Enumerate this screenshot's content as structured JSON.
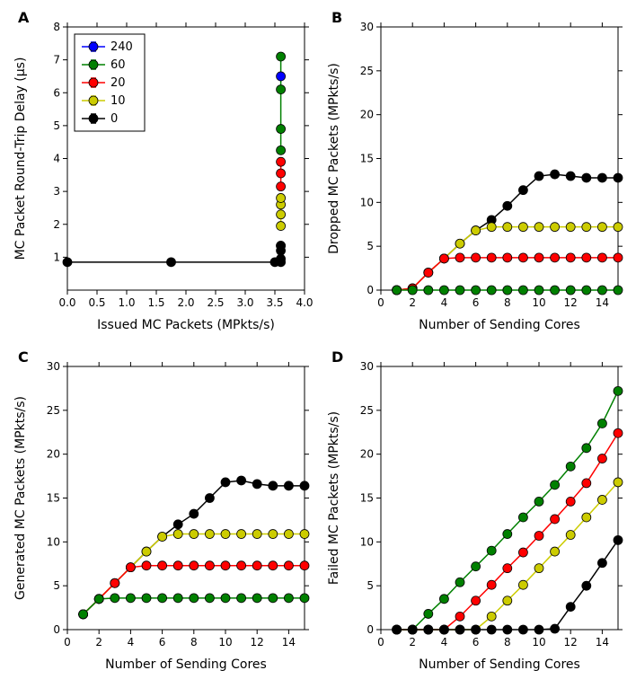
{
  "global": {
    "background_color": "#ffffff",
    "axis_color": "#000000",
    "tick_fontsize": 12,
    "label_fontsize": 14,
    "panel_label_fontsize": 16,
    "marker_size": 5,
    "line_width": 1.5,
    "tick_len": 5,
    "font_family": "DejaVu Sans"
  },
  "legend": {
    "items": [
      {
        "label": "240",
        "color": "#0000ff"
      },
      {
        "label": "60",
        "color": "#008000"
      },
      {
        "label": "20",
        "color": "#ff0000"
      },
      {
        "label": "10",
        "color": "#cccc00"
      },
      {
        "label": "0",
        "color": "#000000"
      }
    ],
    "border_color": "#000000",
    "background": "#ffffff"
  },
  "panels": {
    "A": {
      "type": "scatter-line",
      "panel_label": "A",
      "xlabel": "Issued MC Packets (MPkts/s)",
      "ylabel": "MC Packet Round-Trip Delay (μs)",
      "xlim": [
        0.0,
        4.0
      ],
      "ylim": [
        0,
        8
      ],
      "xticks": [
        0.0,
        0.5,
        1.0,
        1.5,
        2.0,
        2.5,
        3.0,
        3.5,
        4.0
      ],
      "yticks": [
        1,
        2,
        3,
        4,
        5,
        6,
        7,
        8
      ],
      "series": [
        {
          "color": "#000000",
          "x": [
            0.0,
            1.75,
            3.5,
            3.6,
            3.6,
            3.6,
            3.6,
            3.6
          ],
          "y": [
            0.85,
            0.85,
            0.85,
            0.85,
            0.95,
            1.2,
            1.35,
            1.35
          ]
        },
        {
          "color": "#cccc00",
          "x": [
            3.6,
            3.6,
            3.6,
            3.6
          ],
          "y": [
            1.95,
            2.3,
            2.6,
            2.8
          ]
        },
        {
          "color": "#ff0000",
          "x": [
            3.6,
            3.6,
            3.6
          ],
          "y": [
            3.15,
            3.55,
            3.9
          ]
        },
        {
          "color": "#008000",
          "x": [
            3.6,
            3.6,
            3.6,
            3.6
          ],
          "y": [
            4.25,
            4.9,
            6.1,
            7.1
          ]
        },
        {
          "color": "#0000ff",
          "x": [
            3.6
          ],
          "y": [
            6.5
          ]
        }
      ]
    },
    "B": {
      "type": "scatter-line",
      "panel_label": "B",
      "xlabel": "Number of Sending Cores",
      "ylabel": "Dropped MC Packets (MPkts/s)",
      "xlim": [
        0,
        15
      ],
      "ylim": [
        0,
        30
      ],
      "xticks": [
        0,
        2,
        4,
        6,
        8,
        10,
        12,
        14
      ],
      "yticks": [
        0,
        5,
        10,
        15,
        20,
        25,
        30
      ],
      "series": [
        {
          "color": "#000000",
          "x": [
            1,
            2,
            3,
            4,
            5,
            6,
            7,
            8,
            9,
            10,
            11,
            12,
            13,
            14,
            15
          ],
          "y": [
            0,
            0.2,
            2,
            3.6,
            5.3,
            6.8,
            8,
            9.6,
            11.4,
            13,
            13.2,
            13,
            12.8,
            12.8,
            12.8
          ]
        },
        {
          "color": "#cccc00",
          "x": [
            1,
            2,
            3,
            4,
            5,
            6,
            7,
            8,
            9,
            10,
            11,
            12,
            13,
            14,
            15
          ],
          "y": [
            0,
            0.2,
            2,
            3.6,
            5.3,
            6.8,
            7.2,
            7.2,
            7.2,
            7.2,
            7.2,
            7.2,
            7.2,
            7.2,
            7.2
          ]
        },
        {
          "color": "#ff0000",
          "x": [
            1,
            2,
            3,
            4,
            5,
            6,
            7,
            8,
            9,
            10,
            11,
            12,
            13,
            14,
            15
          ],
          "y": [
            0,
            0.2,
            2,
            3.6,
            3.7,
            3.7,
            3.7,
            3.7,
            3.7,
            3.7,
            3.7,
            3.7,
            3.7,
            3.7,
            3.7
          ]
        },
        {
          "color": "#008000",
          "x": [
            1,
            2,
            3,
            4,
            5,
            6,
            7,
            8,
            9,
            10,
            11,
            12,
            13,
            14,
            15
          ],
          "y": [
            0,
            0,
            0,
            0,
            0,
            0,
            0,
            0,
            0,
            0,
            0,
            0,
            0,
            0,
            0
          ]
        }
      ]
    },
    "C": {
      "type": "scatter-line",
      "panel_label": "C",
      "xlabel": "Number of Sending Cores",
      "ylabel": "Generated MC Packets (MPkts/s)",
      "xlim": [
        0,
        15
      ],
      "ylim": [
        0,
        30
      ],
      "xticks": [
        0,
        2,
        4,
        6,
        8,
        10,
        12,
        14
      ],
      "yticks": [
        0,
        5,
        10,
        15,
        20,
        25,
        30
      ],
      "series": [
        {
          "color": "#000000",
          "x": [
            1,
            2,
            3,
            4,
            5,
            6,
            7,
            8,
            9,
            10,
            11,
            12,
            13,
            14,
            15
          ],
          "y": [
            1.75,
            3.5,
            5.3,
            7.1,
            8.9,
            10.6,
            12,
            13.2,
            15,
            16.8,
            17,
            16.6,
            16.4,
            16.4,
            16.4
          ]
        },
        {
          "color": "#cccc00",
          "x": [
            1,
            2,
            3,
            4,
            5,
            6,
            7,
            8,
            9,
            10,
            11,
            12,
            13,
            14,
            15
          ],
          "y": [
            1.75,
            3.5,
            5.3,
            7.1,
            8.9,
            10.6,
            10.9,
            10.9,
            10.9,
            10.9,
            10.9,
            10.9,
            10.9,
            10.9,
            10.9
          ]
        },
        {
          "color": "#ff0000",
          "x": [
            1,
            2,
            3,
            4,
            5,
            6,
            7,
            8,
            9,
            10,
            11,
            12,
            13,
            14,
            15
          ],
          "y": [
            1.75,
            3.5,
            5.3,
            7.1,
            7.3,
            7.3,
            7.3,
            7.3,
            7.3,
            7.3,
            7.3,
            7.3,
            7.3,
            7.3,
            7.3
          ]
        },
        {
          "color": "#008000",
          "x": [
            1,
            2,
            3,
            4,
            5,
            6,
            7,
            8,
            9,
            10,
            11,
            12,
            13,
            14,
            15
          ],
          "y": [
            1.75,
            3.5,
            3.6,
            3.6,
            3.6,
            3.6,
            3.6,
            3.6,
            3.6,
            3.6,
            3.6,
            3.6,
            3.6,
            3.6,
            3.6
          ]
        }
      ]
    },
    "D": {
      "type": "scatter-line",
      "panel_label": "D",
      "xlabel": "Number of Sending Cores",
      "ylabel": "Failed MC Packets (MPkts/s)",
      "xlim": [
        0,
        15
      ],
      "ylim": [
        0,
        30
      ],
      "xticks": [
        0,
        2,
        4,
        6,
        8,
        10,
        12,
        14
      ],
      "yticks": [
        0,
        5,
        10,
        15,
        20,
        25,
        30
      ],
      "series": [
        {
          "color": "#008000",
          "x": [
            1,
            2,
            3,
            4,
            5,
            6,
            7,
            8,
            9,
            10,
            11,
            12,
            13,
            14,
            15
          ],
          "y": [
            0,
            0,
            1.8,
            3.5,
            5.4,
            7.2,
            9.0,
            10.9,
            12.8,
            14.6,
            16.5,
            18.6,
            20.7,
            23.5,
            27.2
          ]
        },
        {
          "color": "#ff0000",
          "x": [
            1,
            2,
            3,
            4,
            5,
            6,
            7,
            8,
            9,
            10,
            11,
            12,
            13,
            14,
            15
          ],
          "y": [
            0,
            0,
            0,
            0,
            1.5,
            3.3,
            5.1,
            7.0,
            8.8,
            10.7,
            12.6,
            14.6,
            16.7,
            19.5,
            22.4
          ]
        },
        {
          "color": "#cccc00",
          "x": [
            1,
            2,
            3,
            4,
            5,
            6,
            7,
            8,
            9,
            10,
            11,
            12,
            13,
            14,
            15
          ],
          "y": [
            0,
            0,
            0,
            0,
            0,
            0,
            1.5,
            3.3,
            5.1,
            7.0,
            8.9,
            10.8,
            12.8,
            14.8,
            16.8
          ]
        },
        {
          "color": "#000000",
          "x": [
            1,
            2,
            3,
            4,
            5,
            6,
            7,
            8,
            9,
            10,
            11,
            12,
            13,
            14,
            15
          ],
          "y": [
            0,
            0,
            0,
            0,
            0,
            0,
            0,
            0,
            0,
            0,
            0.1,
            2.6,
            5,
            7.6,
            10.2
          ]
        }
      ]
    }
  }
}
